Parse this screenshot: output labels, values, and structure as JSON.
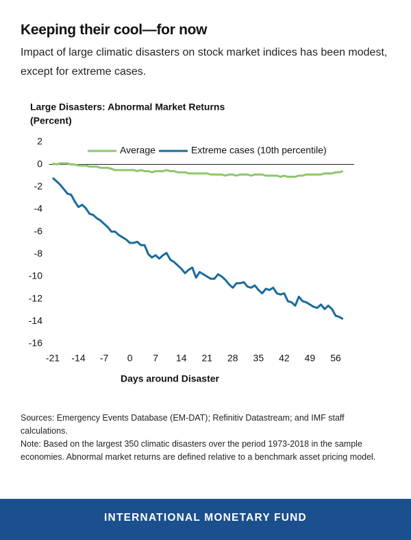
{
  "header": {
    "title": "Keeping their cool—for now",
    "subtitle": "Impact of large climatic disasters on stock market indices has been modest, except for extreme cases."
  },
  "chart_data": {
    "type": "line",
    "title": "Large Disasters: Abnormal Market Returns",
    "y_label": "(Percent)",
    "x_label": "Days around Disaster",
    "x": [
      -21,
      -20,
      -19,
      -18,
      -17,
      -16,
      -15,
      -14,
      -13,
      -12,
      -11,
      -10,
      -9,
      -8,
      -7,
      -6,
      -5,
      -4,
      -3,
      -2,
      -1,
      0,
      1,
      2,
      3,
      4,
      5,
      6,
      7,
      8,
      9,
      10,
      11,
      12,
      13,
      14,
      15,
      16,
      17,
      18,
      19,
      20,
      21,
      22,
      23,
      24,
      25,
      26,
      27,
      28,
      29,
      30,
      31,
      32,
      33,
      34,
      35,
      36,
      37,
      38,
      39,
      40,
      41,
      42,
      43,
      44,
      45,
      46,
      47,
      48,
      49,
      50,
      51,
      52,
      53,
      54,
      55,
      56,
      57,
      58
    ],
    "series": [
      {
        "name": "Average",
        "color": "#8dc66a",
        "values": [
          0.1,
          0.0,
          0.1,
          0.1,
          0.1,
          0.0,
          0.0,
          -0.1,
          -0.1,
          -0.1,
          -0.2,
          -0.2,
          -0.2,
          -0.3,
          -0.3,
          -0.3,
          -0.4,
          -0.5,
          -0.5,
          -0.5,
          -0.5,
          -0.5,
          -0.5,
          -0.6,
          -0.5,
          -0.6,
          -0.6,
          -0.7,
          -0.6,
          -0.6,
          -0.6,
          -0.5,
          -0.6,
          -0.6,
          -0.7,
          -0.7,
          -0.7,
          -0.8,
          -0.8,
          -0.8,
          -0.8,
          -0.8,
          -0.8,
          -0.9,
          -0.9,
          -0.9,
          -0.9,
          -1.0,
          -0.9,
          -0.9,
          -1.0,
          -0.9,
          -0.9,
          -0.9,
          -1.0,
          -0.9,
          -0.9,
          -0.9,
          -1.0,
          -1.0,
          -1.0,
          -1.0,
          -1.1,
          -1.0,
          -1.1,
          -1.1,
          -1.1,
          -1.0,
          -1.0,
          -0.9,
          -0.9,
          -0.9,
          -0.9,
          -0.9,
          -0.8,
          -0.8,
          -0.8,
          -0.7,
          -0.7,
          -0.6
        ]
      },
      {
        "name": "Extreme cases (10th percentile)",
        "color": "#176b9c",
        "values": [
          -1.2,
          -1.5,
          -1.8,
          -2.2,
          -2.6,
          -2.7,
          -3.3,
          -3.8,
          -3.6,
          -3.9,
          -4.4,
          -4.5,
          -4.8,
          -5.0,
          -5.3,
          -5.6,
          -6.0,
          -6.0,
          -6.3,
          -6.5,
          -6.7,
          -7.0,
          -7.0,
          -6.9,
          -7.2,
          -7.2,
          -8.0,
          -8.3,
          -8.1,
          -8.4,
          -8.1,
          -7.9,
          -8.5,
          -8.7,
          -9.0,
          -9.3,
          -9.7,
          -9.4,
          -9.2,
          -10.1,
          -9.6,
          -9.8,
          -10.0,
          -10.2,
          -10.2,
          -9.8,
          -10.0,
          -10.3,
          -10.7,
          -11.0,
          -10.6,
          -10.6,
          -10.5,
          -10.9,
          -11.0,
          -10.8,
          -11.2,
          -11.5,
          -11.1,
          -11.2,
          -11.0,
          -11.5,
          -11.6,
          -11.5,
          -12.2,
          -12.3,
          -12.6,
          -11.8,
          -12.2,
          -12.3,
          -12.5,
          -12.7,
          -12.8,
          -12.5,
          -12.9,
          -12.6,
          -12.9,
          -13.5,
          -13.6,
          -13.8
        ]
      }
    ],
    "xlim": [
      -22,
      61
    ],
    "xticks": [
      -21,
      -14,
      -7,
      0,
      7,
      14,
      21,
      28,
      35,
      42,
      49,
      56
    ],
    "ylim": [
      -16,
      2
    ],
    "yticks": [
      2,
      0,
      -2,
      -4,
      -6,
      -8,
      -10,
      -12,
      -14,
      -16
    ],
    "grid": false,
    "legend": "top"
  },
  "notes": {
    "sources": "Sources: Emergency Events Database (EM-DAT); Refinitiv Datastream; and IMF staff calculations.",
    "note": "Note: Based on the largest 350 climatic disasters over the period 1973-2018 in the sample economies. Abnormal market returns are defined relative to a benchmark asset pricing model."
  },
  "footer": {
    "text": "INTERNATIONAL MONETARY FUND"
  }
}
